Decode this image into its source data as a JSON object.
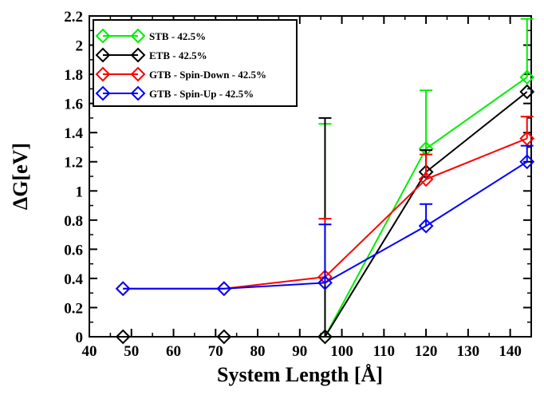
{
  "chart_data": {
    "type": "line",
    "xlabel": "System Length [Å]",
    "ylabel": "ΔG[eV]",
    "xlim": [
      40,
      145
    ],
    "ylim": [
      0,
      2.2
    ],
    "x_ticks": [
      "40",
      "50",
      "60",
      "70",
      "80",
      "90",
      "100",
      "110",
      "120",
      "130",
      "140"
    ],
    "y_ticks": [
      "0",
      "0.2",
      "0.4",
      "0.6",
      "0.8",
      "1",
      "1.2",
      "1.4",
      "1.6",
      "1.8",
      "2",
      "2.2"
    ],
    "marker": "diamond",
    "legend_position": "top-left",
    "grid": false,
    "series": [
      {
        "name": "STB - 42.5%",
        "color": "#00ee00",
        "points": [
          {
            "x": 96,
            "y": 0.0,
            "err": 1.46
          },
          {
            "x": 120,
            "y": 1.29,
            "err": 0.4
          },
          {
            "x": 144,
            "y": 1.78,
            "err": 0.4
          }
        ]
      },
      {
        "name": "ETB - 42.5%",
        "color": "#000000",
        "points": [
          {
            "x": 48,
            "y": 0.0
          },
          {
            "x": 72,
            "y": 0.0
          },
          {
            "x": 96,
            "y": 0.0,
            "err": 1.5
          },
          {
            "x": 120,
            "y": 1.13,
            "err": 0.15
          },
          {
            "x": 144,
            "y": 1.68
          }
        ]
      },
      {
        "name": "GTB - Spin-Down - 42.5%",
        "color": "#ff0000",
        "points": [
          {
            "x": 48,
            "y": 0.33
          },
          {
            "x": 72,
            "y": 0.33
          },
          {
            "x": 96,
            "y": 0.41,
            "err": 0.4
          },
          {
            "x": 120,
            "y": 1.08,
            "err": 0.17
          },
          {
            "x": 144,
            "y": 1.36,
            "err": 0.15
          }
        ]
      },
      {
        "name": "GTB - Spin-Up - 42.5%",
        "color": "#0000ff",
        "points": [
          {
            "x": 48,
            "y": 0.33
          },
          {
            "x": 72,
            "y": 0.33
          },
          {
            "x": 96,
            "y": 0.37,
            "err": 0.4
          },
          {
            "x": 120,
            "y": 0.76,
            "err": 0.15
          },
          {
            "x": 144,
            "y": 1.2,
            "err": 0.11
          }
        ]
      }
    ]
  }
}
